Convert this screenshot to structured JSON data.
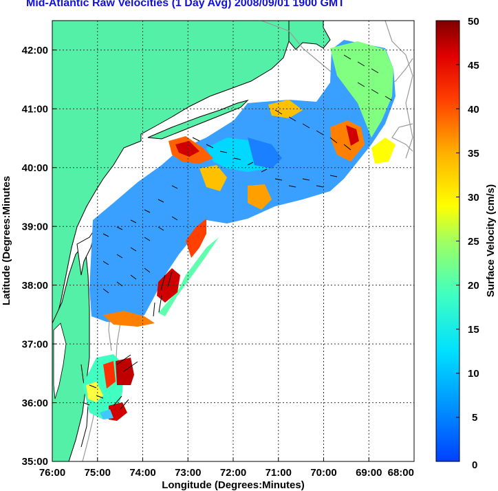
{
  "title": "Mid-Atlantic Raw Velocities (1 Day Avg) 2008/09/01 1900 GMT",
  "map": {
    "x_label": "Longitude (Degrees:Minutes)",
    "y_label": "Latitude (Degrees:Minutes",
    "x_ticks": [
      "76:00",
      "75:00",
      "74:00",
      "73:00",
      "72:00",
      "71:00",
      "70:00",
      "69:00",
      "68:00"
    ],
    "y_ticks": [
      "42:00",
      "41:00",
      "40:00",
      "39:00",
      "38:00",
      "37:00",
      "36:00",
      "35:00"
    ],
    "x_range": [
      -76,
      -68
    ],
    "y_range": [
      35,
      42.5
    ],
    "grid": "dotted",
    "colors": {
      "land": "#55f0a8",
      "contour": "#999999",
      "coast": "#000000",
      "title": "#1010e0"
    }
  },
  "colorbar": {
    "label": "Surface Velocity (cm/s)",
    "ticks": [
      "50",
      "45",
      "40",
      "35",
      "30",
      "25",
      "20",
      "15",
      "10",
      "5",
      "0"
    ],
    "range": [
      0,
      50
    ],
    "colormap": "jet"
  }
}
